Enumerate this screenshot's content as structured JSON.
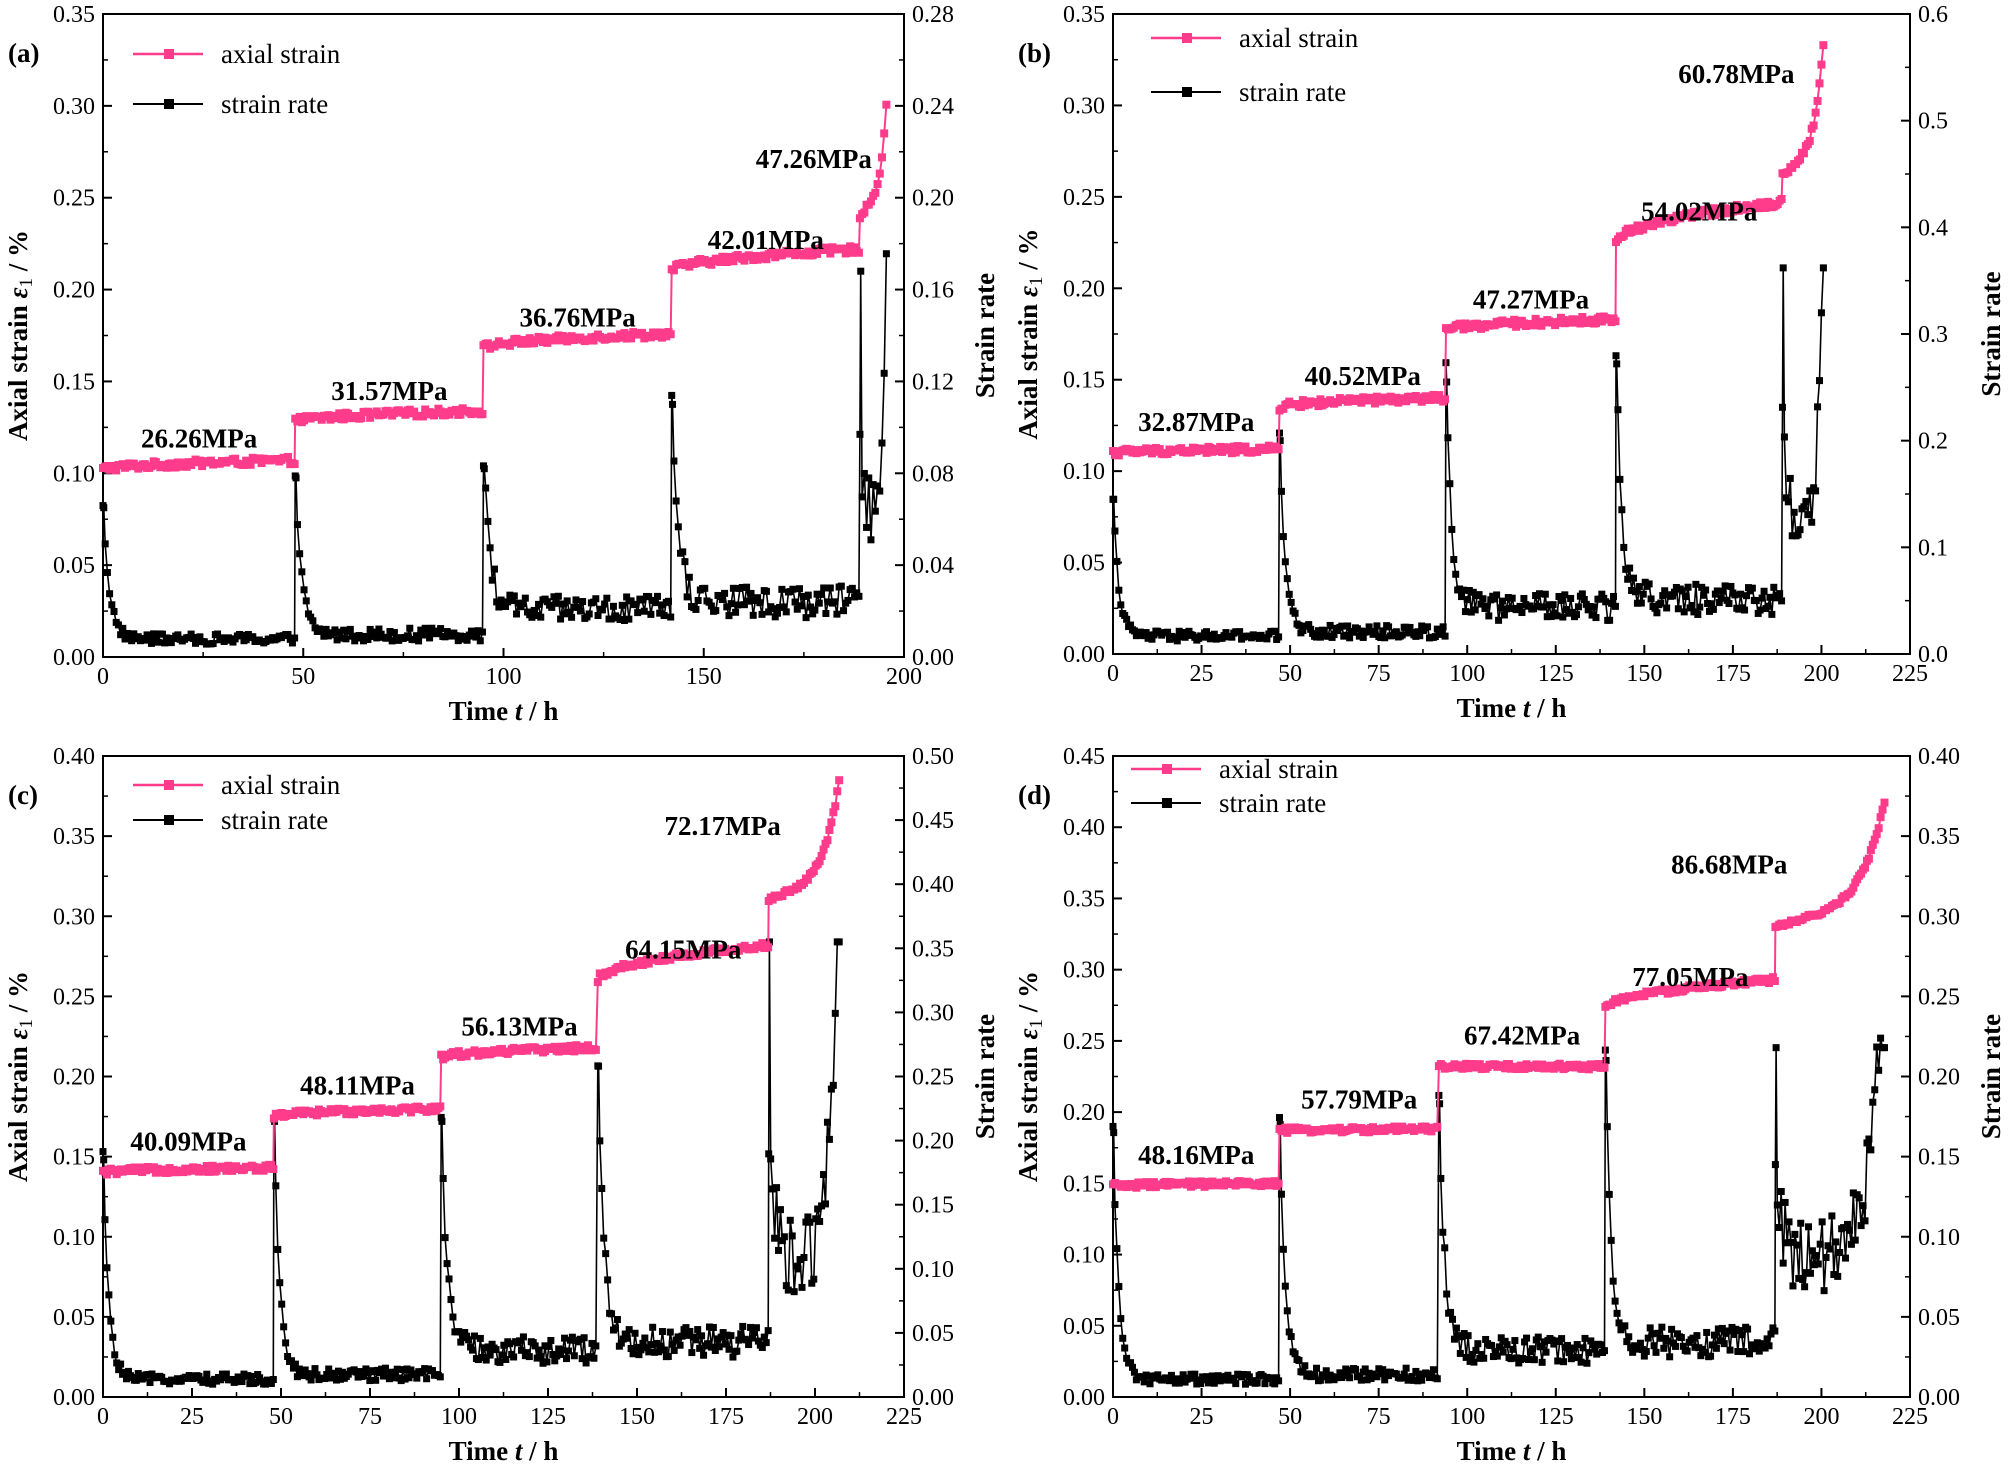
{
  "colors": {
    "axial": "#ff3c8c",
    "rate": "#000000"
  },
  "chart_data": [
    {
      "type": "line",
      "panel_label": "(a)",
      "xlabel": {
        "prefix": "Time ",
        "var": "t",
        "suffix": " / h"
      },
      "ylabel_left": {
        "prefix": "Axial strain ",
        "var": "ε",
        "sub": "1",
        "suffix": " / %"
      },
      "ylabel_right": "Strain rate",
      "xlim": [
        0,
        200
      ],
      "xticks": [
        0,
        50,
        100,
        150,
        200
      ],
      "ylim_left": [
        0,
        0.35
      ],
      "yticks_left": [
        "0.00",
        "0.05",
        "0.10",
        "0.15",
        "0.20",
        "0.25",
        "0.30",
        "0.35"
      ],
      "ylim_right": [
        0,
        0.28
      ],
      "yticks_right": [
        "0.00",
        "0.04",
        "0.08",
        "0.12",
        "0.16",
        "0.20",
        "0.24",
        "0.28"
      ],
      "legend": [
        "axial strain",
        "strain rate"
      ],
      "stages": [
        {
          "stress": "26.26MPa",
          "t_start": 0,
          "t_end": 48,
          "strain_start": 0.102,
          "strain_end": 0.107,
          "rate_peak": 0.065
        },
        {
          "stress": "31.57MPa",
          "t_start": 48,
          "t_end": 95,
          "strain_start": 0.128,
          "strain_end": 0.134,
          "rate_peak": 0.078
        },
        {
          "stress": "36.76MPa",
          "t_start": 95,
          "t_end": 142,
          "strain_start": 0.168,
          "strain_end": 0.176,
          "rate_peak": 0.082
        },
        {
          "stress": "42.01MPa",
          "t_start": 142,
          "t_end": 189,
          "strain_start": 0.21,
          "strain_end": 0.222,
          "rate_peak": 0.11
        },
        {
          "stress": "47.26MPa",
          "t_start": 189,
          "t_end": 196,
          "strain_start": 0.24,
          "strain_end": 0.318,
          "rate_peak": 0.168
        }
      ]
    },
    {
      "type": "line",
      "panel_label": "(b)",
      "xlabel": {
        "prefix": "Time ",
        "var": "t",
        "suffix": " / h"
      },
      "ylabel_left": {
        "prefix": "Axial strain ",
        "var": "ε",
        "sub": "1",
        "suffix": " / %"
      },
      "ylabel_right": "Strain rate",
      "xlim": [
        0,
        225
      ],
      "xticks": [
        0,
        25,
        50,
        75,
        100,
        125,
        150,
        175,
        200,
        225
      ],
      "ylim_left": [
        0,
        0.35
      ],
      "yticks_left": [
        "0.00",
        "0.05",
        "0.10",
        "0.15",
        "0.20",
        "0.25",
        "0.30",
        "0.35"
      ],
      "ylim_right": [
        0,
        0.6
      ],
      "yticks_right": [
        "0.0",
        "0.1",
        "0.2",
        "0.3",
        "0.4",
        "0.5",
        "0.6"
      ],
      "legend": [
        "axial strain",
        "strain rate"
      ],
      "stages": [
        {
          "stress": "32.87MPa",
          "t_start": 0,
          "t_end": 47,
          "strain_start": 0.11,
          "strain_end": 0.112,
          "rate_peak": 0.145
        },
        {
          "stress": "40.52MPa",
          "t_start": 47,
          "t_end": 94,
          "strain_start": 0.135,
          "strain_end": 0.14,
          "rate_peak": 0.2
        },
        {
          "stress": "47.27MPa",
          "t_start": 94,
          "t_end": 142,
          "strain_start": 0.177,
          "strain_end": 0.183,
          "rate_peak": 0.255
        },
        {
          "stress": "54.02MPa",
          "t_start": 142,
          "t_end": 189,
          "strain_start": 0.225,
          "strain_end": 0.247,
          "rate_peak": 0.272
        },
        {
          "stress": "60.78MPa",
          "t_start": 189,
          "t_end": 201,
          "strain_start": 0.262,
          "strain_end": 0.345,
          "rate_peak": 0.362
        }
      ]
    },
    {
      "type": "line",
      "panel_label": "(c)",
      "xlabel": {
        "prefix": "Time ",
        "var": "t",
        "suffix": " / h"
      },
      "ylabel_left": {
        "prefix": "Axial strain ",
        "var": "ε",
        "sub": "1",
        "suffix": " / %"
      },
      "ylabel_right": "Strain rate",
      "xlim": [
        0,
        225
      ],
      "xticks": [
        0,
        25,
        50,
        75,
        100,
        125,
        150,
        175,
        200,
        225
      ],
      "ylim_left": [
        0,
        0.4
      ],
      "yticks_left": [
        "0.00",
        "0.05",
        "0.10",
        "0.15",
        "0.20",
        "0.25",
        "0.30",
        "0.35",
        "0.40"
      ],
      "ylim_right": [
        0,
        0.5
      ],
      "yticks_right": [
        "0.00",
        "0.05",
        "0.10",
        "0.15",
        "0.20",
        "0.25",
        "0.30",
        "0.35",
        "0.40",
        "0.45",
        "0.50"
      ],
      "legend": [
        "axial strain",
        "strain rate"
      ],
      "stages": [
        {
          "stress": "40.09MPa",
          "t_start": 0,
          "t_end": 48,
          "strain_start": 0.14,
          "strain_end": 0.143,
          "rate_peak": 0.185
        },
        {
          "stress": "48.11MPa",
          "t_start": 48,
          "t_end": 95,
          "strain_start": 0.175,
          "strain_end": 0.18,
          "rate_peak": 0.215
        },
        {
          "stress": "56.13MPa",
          "t_start": 95,
          "t_end": 139,
          "strain_start": 0.212,
          "strain_end": 0.218,
          "rate_peak": 0.215
        },
        {
          "stress": "64.15MPa",
          "t_start": 139,
          "t_end": 187,
          "strain_start": 0.26,
          "strain_end": 0.282,
          "rate_peak": 0.258
        },
        {
          "stress": "72.17MPa",
          "t_start": 187,
          "t_end": 207,
          "strain_start": 0.31,
          "strain_end": 0.388,
          "rate_peak": 0.355
        }
      ]
    },
    {
      "type": "line",
      "panel_label": "(d)",
      "xlabel": {
        "prefix": "Time ",
        "var": "t",
        "suffix": " / h"
      },
      "ylabel_left": {
        "prefix": "Axial strain ",
        "var": "ε",
        "sub": "1",
        "suffix": " / %"
      },
      "ylabel_right": "Strain rate",
      "xlim": [
        0,
        225
      ],
      "xticks": [
        0,
        25,
        50,
        75,
        100,
        125,
        150,
        175,
        200,
        225
      ],
      "ylim_left": [
        0,
        0.45
      ],
      "yticks_left": [
        "0.00",
        "0.05",
        "0.10",
        "0.15",
        "0.20",
        "0.25",
        "0.30",
        "0.35",
        "0.40",
        "0.45"
      ],
      "ylim_right": [
        0,
        0.4
      ],
      "yticks_right": [
        "0.00",
        "0.05",
        "0.10",
        "0.15",
        "0.20",
        "0.25",
        "0.30",
        "0.35",
        "0.40"
      ],
      "legend": [
        "axial strain",
        "strain rate"
      ],
      "stages": [
        {
          "stress": "48.16MPa",
          "t_start": 0,
          "t_end": 47,
          "strain_start": 0.148,
          "strain_end": 0.15,
          "rate_peak": 0.165
        },
        {
          "stress": "57.79MPa",
          "t_start": 47,
          "t_end": 92,
          "strain_start": 0.187,
          "strain_end": 0.188,
          "rate_peak": 0.17
        },
        {
          "stress": "67.42MPa",
          "t_start": 92,
          "t_end": 139,
          "strain_start": 0.232,
          "strain_end": 0.232,
          "rate_peak": 0.183
        },
        {
          "stress": "77.05MPa",
          "t_start": 139,
          "t_end": 187,
          "strain_start": 0.273,
          "strain_end": 0.293,
          "rate_peak": 0.21
        },
        {
          "stress": "86.68MPa",
          "t_start": 187,
          "t_end": 218,
          "strain_start": 0.33,
          "strain_end": 0.42,
          "rate_peak": 0.218
        }
      ]
    }
  ]
}
